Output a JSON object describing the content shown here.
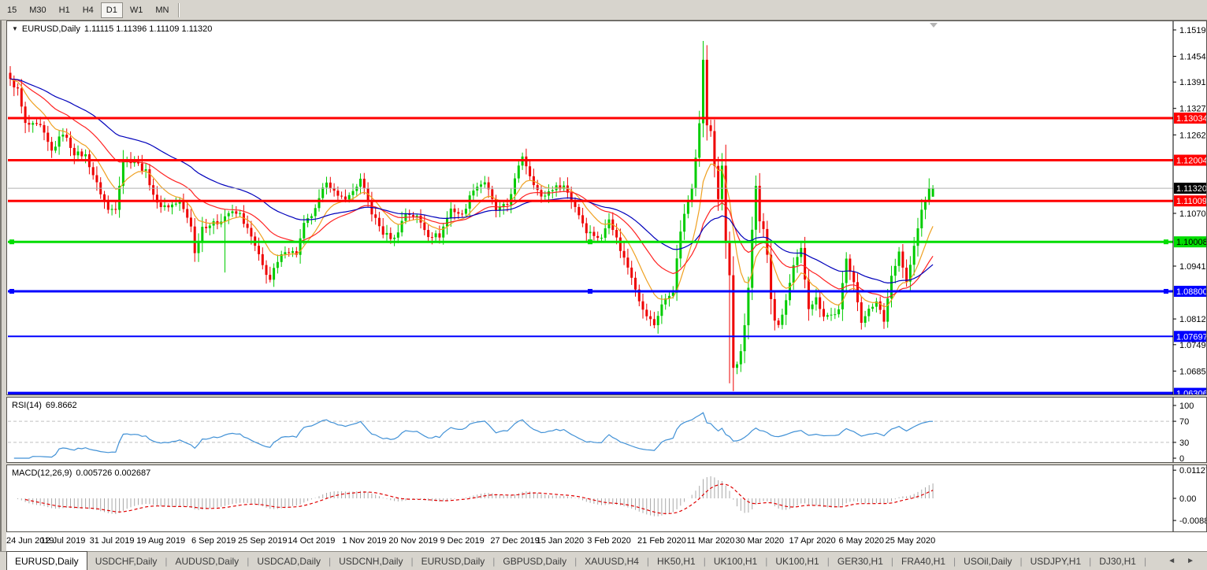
{
  "toolbar": {
    "periods": [
      {
        "label": "15",
        "active": false
      },
      {
        "label": "M30",
        "active": false
      },
      {
        "label": "H1",
        "active": false
      },
      {
        "label": "H4",
        "active": false
      },
      {
        "label": "D1",
        "active": true
      },
      {
        "label": "W1",
        "active": false
      },
      {
        "label": "MN",
        "active": false
      }
    ]
  },
  "title": {
    "dropdown_icon": "▼",
    "symbol": "EURUSD,Daily",
    "ohlc": "1.11115 1.11396 1.11109 1.11320"
  },
  "panels": {
    "rsi": {
      "name": "RSI(14)",
      "value": "69.8662"
    },
    "macd": {
      "name": "MACD(12,26,9)",
      "value": "0.005726 0.002687"
    }
  },
  "tabs": {
    "scroll_left_icon": "◄",
    "scroll_right_icon": "►",
    "items": [
      {
        "label": "EURUSD,Daily",
        "active": true
      },
      {
        "label": "USDCHF,Daily",
        "active": false
      },
      {
        "label": "AUDUSD,Daily",
        "active": false
      },
      {
        "label": "USDCAD,Daily",
        "active": false
      },
      {
        "label": "USDCNH,Daily",
        "active": false
      },
      {
        "label": "EURUSD,Daily",
        "active": false
      },
      {
        "label": "GBPUSD,Daily",
        "active": false
      },
      {
        "label": "XAUUSD,H4",
        "active": false
      },
      {
        "label": "HK50,H1",
        "active": false
      },
      {
        "label": "UK100,H1",
        "active": false
      },
      {
        "label": "UK100,H1",
        "active": false
      },
      {
        "label": "GER30,H1",
        "active": false
      },
      {
        "label": "FRA40,H1",
        "active": false
      },
      {
        "label": "USOil,Daily",
        "active": false
      },
      {
        "label": "USDJPY,H1",
        "active": false
      },
      {
        "label": "DJ30,H1",
        "active": false
      }
    ]
  },
  "chart_data": {
    "type": "candlestick",
    "symbol": "EURUSD",
    "period": "Daily",
    "bars": 246,
    "up_color": "#00cc00",
    "down_color": "#ee0000",
    "close_keypoints": [
      [
        0,
        1.1395
      ],
      [
        2,
        1.1372
      ],
      [
        4,
        1.1288
      ],
      [
        8,
        1.1282
      ],
      [
        11,
        1.1222
      ],
      [
        14,
        1.1268
      ],
      [
        17,
        1.1218
      ],
      [
        20,
        1.1212
      ],
      [
        23,
        1.1142
      ],
      [
        26,
        1.1078
      ],
      [
        28,
        1.1085
      ],
      [
        30,
        1.1202
      ],
      [
        33,
        1.1198
      ],
      [
        36,
        1.1172
      ],
      [
        39,
        1.1092
      ],
      [
        42,
        1.1088
      ],
      [
        45,
        1.1098
      ],
      [
        48,
        1.1042
      ],
      [
        49,
        1.0972
      ],
      [
        51,
        1.1038
      ],
      [
        55,
        1.1048
      ],
      [
        58,
        1.1072
      ],
      [
        61,
        1.1068
      ],
      [
        64,
        1.1012
      ],
      [
        67,
        1.0942
      ],
      [
        69,
        1.0908
      ],
      [
        70,
        1.0932
      ],
      [
        73,
        1.0982
      ],
      [
        76,
        1.0972
      ],
      [
        78,
        1.1042
      ],
      [
        81,
        1.1078
      ],
      [
        84,
        1.1152
      ],
      [
        87,
        1.1108
      ],
      [
        90,
        1.1112
      ],
      [
        93,
        1.1152
      ],
      [
        96,
        1.1072
      ],
      [
        99,
        1.1022
      ],
      [
        102,
        1.1008
      ],
      [
        105,
        1.1072
      ],
      [
        108,
        1.1062
      ],
      [
        111,
        1.1018
      ],
      [
        114,
        1.1016
      ],
      [
        117,
        1.1082
      ],
      [
        120,
        1.1066
      ],
      [
        123,
        1.1132
      ],
      [
        126,
        1.1148
      ],
      [
        129,
        1.1078
      ],
      [
        132,
        1.1092
      ],
      [
        136,
        1.1212
      ],
      [
        138,
        1.1165
      ],
      [
        141,
        1.1108
      ],
      [
        144,
        1.1132
      ],
      [
        147,
        1.1138
      ],
      [
        150,
        1.1088
      ],
      [
        153,
        1.1028
      ],
      [
        157,
        1.1008
      ],
      [
        159,
        1.1062
      ],
      [
        162,
        1.0982
      ],
      [
        165,
        1.0918
      ],
      [
        168,
        1.0832
      ],
      [
        171,
        1.0798
      ],
      [
        173,
        1.0848
      ],
      [
        176,
        1.0882
      ],
      [
        178,
        1.1028
      ],
      [
        181,
        1.1138
      ],
      [
        183,
        1.1288
      ],
      [
        184,
        1.1448
      ],
      [
        185,
        1.1282
      ],
      [
        186,
        1.1272
      ],
      [
        187,
        1.1188
      ],
      [
        188,
        1.1108
      ],
      [
        189,
        1.1182
      ],
      [
        190,
        1.0998
      ],
      [
        191,
        1.0918
      ],
      [
        192,
        1.0692
      ],
      [
        193,
        1.0698
      ],
      [
        194,
        1.0728
      ],
      [
        195,
        1.0792
      ],
      [
        196,
        1.0888
      ],
      [
        197,
        1.1032
      ],
      [
        198,
        1.1142
      ],
      [
        199,
        1.1048
      ],
      [
        200,
        1.1032
      ],
      [
        201,
        1.0968
      ],
      [
        202,
        1.0858
      ],
      [
        203,
        1.0812
      ],
      [
        204,
        1.0792
      ],
      [
        206,
        1.0858
      ],
      [
        208,
        1.0938
      ],
      [
        210,
        1.0982
      ],
      [
        212,
        1.0842
      ],
      [
        214,
        1.0862
      ],
      [
        216,
        1.0822
      ],
      [
        218,
        1.0822
      ],
      [
        220,
        1.0832
      ],
      [
        222,
        1.0958
      ],
      [
        224,
        1.0908
      ],
      [
        226,
        1.0798
      ],
      [
        228,
        1.0842
      ],
      [
        230,
        1.0852
      ],
      [
        232,
        1.0808
      ],
      [
        234,
        1.0918
      ],
      [
        236,
        1.0978
      ],
      [
        238,
        1.0902
      ],
      [
        240,
        1.0988
      ],
      [
        242,
        1.1078
      ],
      [
        243,
        1.1102
      ],
      [
        244,
        1.1136
      ],
      [
        245,
        1.1132
      ]
    ],
    "wick_overrides": [
      {
        "i": 184,
        "high": 1.1492
      },
      {
        "i": 57,
        "low": 1.0926
      },
      {
        "i": 191,
        "low": 1.0655
      },
      {
        "i": 192,
        "low": 1.0636
      }
    ],
    "last_candle": {
      "i": 245,
      "open": 1.11115,
      "high": 1.11396,
      "low": 1.11109,
      "close": 1.1132
    },
    "moving_averages": [
      {
        "type": "ema",
        "period": 10,
        "color": "#efa020"
      },
      {
        "type": "ema",
        "period": 25,
        "color": "#ff2222"
      },
      {
        "type": "ema",
        "period": 50,
        "color": "#0000bb"
      }
    ],
    "horizontal_levels": [
      {
        "price": 1.13034,
        "label": "1.13034",
        "color": "#ff0000",
        "thickness": 3,
        "label_fg": "#ffffff",
        "selected": false
      },
      {
        "price": 1.12004,
        "label": "1.12004",
        "color": "#ff0000",
        "thickness": 3,
        "label_fg": "#ffffff",
        "selected": false
      },
      {
        "price": 1.11009,
        "label": "1.11009",
        "color": "#ff0000",
        "thickness": 3,
        "label_fg": "#ffffff",
        "selected": false
      },
      {
        "price": 1.10008,
        "label": "1.10008",
        "color": "#00dd00",
        "thickness": 3,
        "label_fg": "#000000",
        "selected": true
      },
      {
        "price": 1.088,
        "label": "1.08800",
        "color": "#0000ff",
        "thickness": 3,
        "label_fg": "#ffffff",
        "selected": true
      },
      {
        "price": 1.07697,
        "label": "1.07697",
        "color": "#0000ff",
        "thickness": 2,
        "label_fg": "#ffffff",
        "selected": false
      },
      {
        "price": 1.06306,
        "label": "1.06306",
        "color": "#0000ff",
        "thickness": 4,
        "label_fg": "#ffffff",
        "selected": false
      }
    ],
    "current_price": {
      "price": 1.1132,
      "label": "1.11320",
      "line_color": "#b0b0b0",
      "label_bg": "#000000",
      "label_fg": "#ffffff"
    },
    "price_axis": {
      "ticks": [
        "1.15190",
        "1.14545",
        "1.13915",
        "1.13270",
        "1.12625",
        "1.10705",
        "1.09415",
        "1.08125",
        "1.07495",
        "1.06850"
      ]
    },
    "x_axis": {
      "labels": [
        {
          "text": "24 Jun 2019",
          "i": 0
        },
        {
          "text": "12 Jul 2019",
          "i": 14
        },
        {
          "text": "31 Jul 2019",
          "i": 27
        },
        {
          "text": "19 Aug 2019",
          "i": 40
        },
        {
          "text": "6 Sep 2019",
          "i": 54
        },
        {
          "text": "25 Sep 2019",
          "i": 67
        },
        {
          "text": "14 Oct 2019",
          "i": 80
        },
        {
          "text": "1 Nov 2019",
          "i": 94
        },
        {
          "text": "20 Nov 2019",
          "i": 107
        },
        {
          "text": "9 Dec 2019",
          "i": 120
        },
        {
          "text": "27 Dec 2019",
          "i": 134
        },
        {
          "text": "15 Jan 2020",
          "i": 146
        },
        {
          "text": "3 Feb 2020",
          "i": 159
        },
        {
          "text": "21 Feb 2020",
          "i": 173
        },
        {
          "text": "11 Mar 2020",
          "i": 186
        },
        {
          "text": "30 Mar 2020",
          "i": 199
        },
        {
          "text": "17 Apr 2020",
          "i": 213
        },
        {
          "text": "6 May 2020",
          "i": 226
        },
        {
          "text": "25 May 2020",
          "i": 239
        }
      ]
    },
    "rsi": {
      "period": 14,
      "last_value": 69.8662,
      "line_color": "#4191d6",
      "levels": [
        70,
        30
      ],
      "level_line_color": "#c0c0c0",
      "ticks": [
        "100",
        "70",
        "30",
        "0"
      ],
      "range": [
        0,
        100
      ]
    },
    "macd": {
      "fast": 12,
      "slow": 26,
      "signal": 9,
      "last_macd": 0.005726,
      "last_signal": 0.002687,
      "histogram_color": "#a8a8a8",
      "signal_color": "#e00000",
      "ticks": [
        "0.011277",
        "0.00",
        "-0.008845"
      ],
      "range": [
        -0.008845,
        0.011277
      ]
    }
  },
  "colors": {
    "toolbar_bg": "#d7d4cd",
    "panel_bg": "#ffffff",
    "panel_border": "#55534e",
    "axis_text": "#000000"
  }
}
